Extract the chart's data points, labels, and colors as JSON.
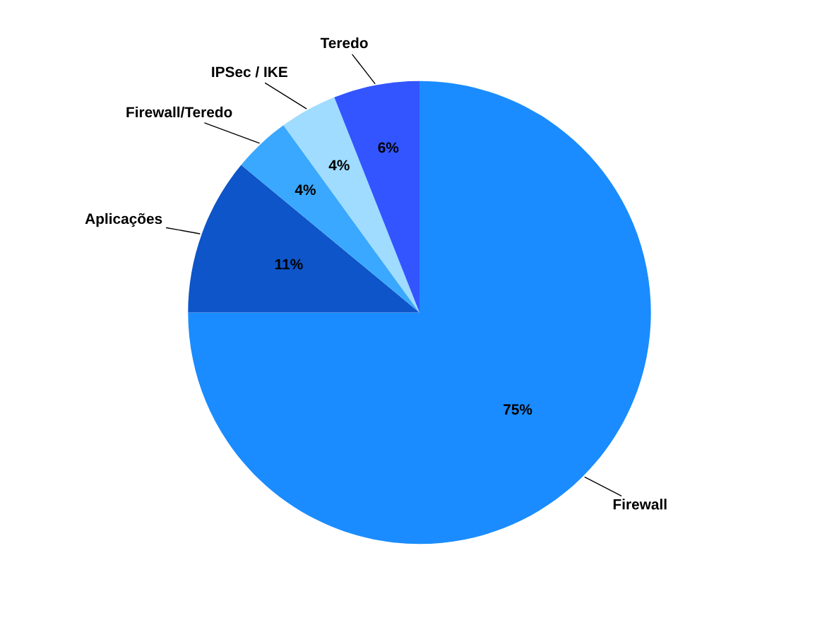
{
  "chart_data": {
    "type": "pie",
    "categories": [
      "Firewall",
      "Aplicações",
      "Firewall/Teredo",
      "IPSec / IKE",
      "Teredo"
    ],
    "values": [
      75,
      11,
      4,
      4,
      6
    ],
    "colors": [
      "#1a8cff",
      "#0d55c8",
      "#3aa8ff",
      "#9fdcff",
      "#3355ff"
    ],
    "value_labels": [
      "75%",
      "11%",
      "4%",
      "4%",
      "6%"
    ],
    "legend": false
  }
}
